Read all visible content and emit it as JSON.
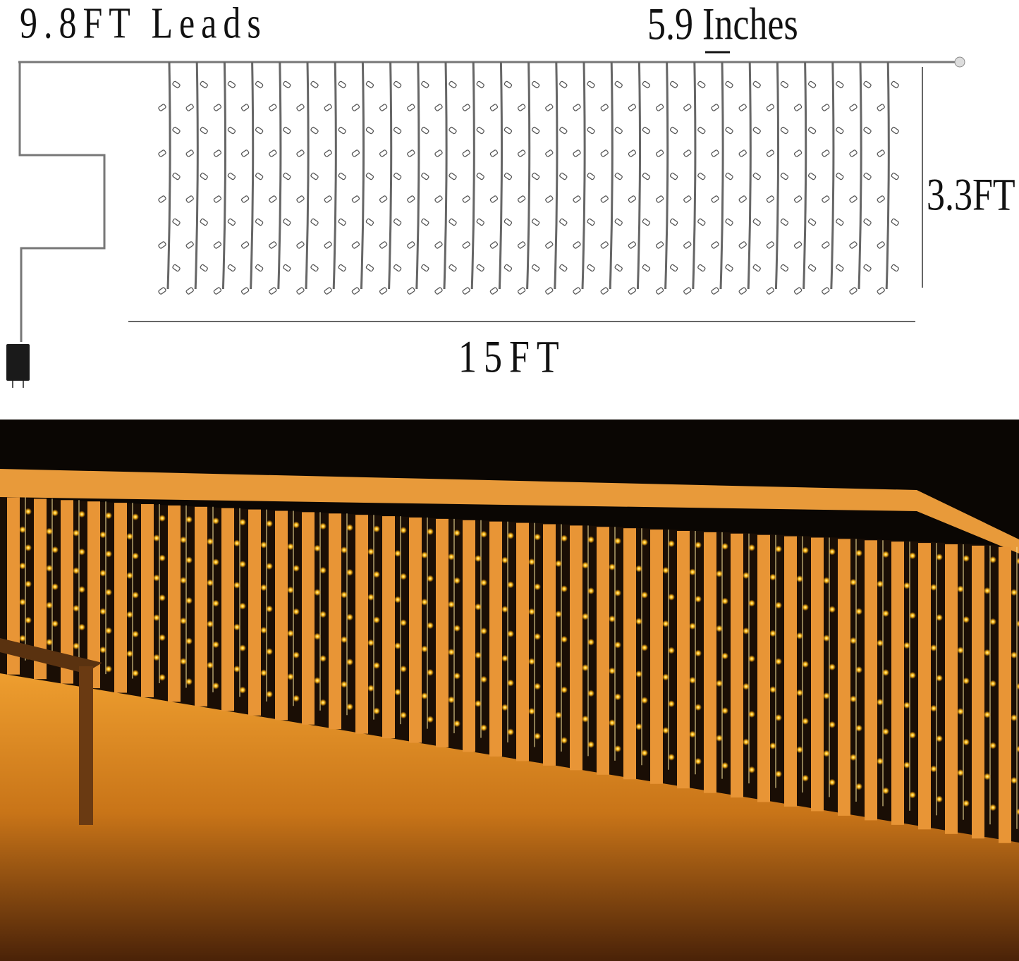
{
  "diagram": {
    "leads_label": "9.8FT Leads",
    "spacing_label": "5.9 Inches",
    "height_label": "3.3FT",
    "width_label": "15FT"
  },
  "photo": {
    "description_colors": {
      "light": "#ffb400",
      "sky": "#0a0603",
      "wood": "#e08a20"
    }
  }
}
